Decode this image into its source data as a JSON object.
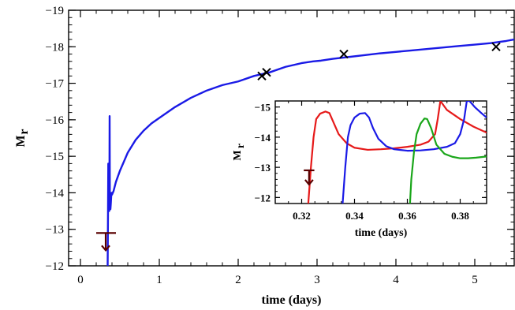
{
  "chart_data": [
    {
      "type": "line",
      "title": "",
      "xlabel": "time (days)",
      "ylabel_main": "M",
      "ylabel_sub": "r",
      "xlim": [
        -0.15,
        5.5
      ],
      "ylim": [
        -12,
        -19
      ],
      "y_axis_inverted": true,
      "xticks": [
        0,
        1,
        2,
        3,
        4,
        5
      ],
      "xtick_labels": [
        "0",
        "1",
        "2",
        "3",
        "4",
        "5"
      ],
      "yticks": [
        -12,
        -13,
        -14,
        -15,
        -16,
        -17,
        -18,
        -19
      ],
      "ytick_labels": [
        "−12",
        "−13",
        "−14",
        "−15",
        "−16",
        "−17",
        "−18",
        "−19"
      ],
      "grid": false,
      "series": [
        {
          "color": "#1a1ae6",
          "x": [
            0.345,
            0.35,
            0.353,
            0.356,
            0.36,
            0.364,
            0.367,
            0.37,
            0.373,
            0.376,
            0.38,
            0.385,
            0.39,
            0.395,
            0.4,
            0.42,
            0.45,
            0.5,
            0.55,
            0.6,
            0.7,
            0.8,
            0.9,
            1.0,
            1.2,
            1.4,
            1.6,
            1.8,
            2.0,
            2.2,
            2.4,
            2.6,
            2.8,
            2.95,
            3.05,
            3.2,
            3.4,
            3.6,
            3.8,
            4.0,
            4.2,
            4.4,
            4.6,
            4.8,
            5.0,
            5.2,
            5.4,
            5.5
          ],
          "y": [
            -12.0,
            -13.6,
            -14.8,
            -13.8,
            -13.55,
            -13.5,
            -13.8,
            -16.1,
            -13.8,
            -13.55,
            -13.55,
            -13.7,
            -13.9,
            -14.0,
            -13.95,
            -14.05,
            -14.3,
            -14.6,
            -14.85,
            -15.1,
            -15.45,
            -15.7,
            -15.9,
            -16.05,
            -16.35,
            -16.6,
            -16.8,
            -16.95,
            -17.05,
            -17.2,
            -17.3,
            -17.45,
            -17.55,
            -17.6,
            -17.62,
            -17.67,
            -17.72,
            -17.77,
            -17.82,
            -17.86,
            -17.9,
            -17.94,
            -17.98,
            -18.02,
            -18.06,
            -18.1,
            -18.16,
            -18.2
          ]
        }
      ],
      "markers": {
        "symbol": "×",
        "color": "#000000",
        "points": [
          {
            "x": 2.3,
            "y": -17.2
          },
          {
            "x": 2.36,
            "y": -17.3
          },
          {
            "x": 3.34,
            "y": -17.8
          },
          {
            "x": 5.27,
            "y": -18.0
          }
        ]
      },
      "upper_limit": {
        "x": 0.32,
        "x_range": [
          0.2,
          0.45
        ],
        "y": -12.9,
        "color": "#5a0000"
      }
    },
    {
      "type": "line",
      "title": "",
      "xlabel": "time (days)",
      "ylabel_main": "M",
      "ylabel_sub": "r",
      "xlim": [
        0.31,
        0.39
      ],
      "ylim": [
        -11.8,
        -15.2
      ],
      "y_axis_inverted": true,
      "xticks": [
        0.32,
        0.34,
        0.36,
        0.38
      ],
      "xtick_labels": [
        "0.32",
        "0.34",
        "0.36",
        "0.38"
      ],
      "yticks": [
        -12,
        -13,
        -14,
        -15
      ],
      "ytick_labels": [
        "−12",
        "−13",
        "−14",
        "−15"
      ],
      "grid": false,
      "series": [
        {
          "color": "#e61a1a",
          "x": [
            0.3225,
            0.3235,
            0.3245,
            0.3255,
            0.327,
            0.329,
            0.3305,
            0.332,
            0.334,
            0.337,
            0.34,
            0.345,
            0.35,
            0.355,
            0.36,
            0.365,
            0.368,
            0.3705,
            0.3715,
            0.3725,
            0.375,
            0.38,
            0.385,
            0.39
          ],
          "y": [
            -11.8,
            -13.0,
            -14.0,
            -14.6,
            -14.78,
            -14.85,
            -14.8,
            -14.5,
            -14.1,
            -13.8,
            -13.65,
            -13.58,
            -13.6,
            -13.63,
            -13.68,
            -13.75,
            -13.85,
            -14.1,
            -14.6,
            -15.2,
            -14.9,
            -14.6,
            -14.35,
            -14.15
          ]
        },
        {
          "color": "#1a1ae6",
          "x": [
            0.3355,
            0.3365,
            0.3375,
            0.3385,
            0.34,
            0.342,
            0.344,
            0.3455,
            0.347,
            0.349,
            0.352,
            0.355,
            0.36,
            0.365,
            0.37,
            0.375,
            0.378,
            0.38,
            0.3815,
            0.3825,
            0.3835,
            0.3855,
            0.388,
            0.39
          ],
          "y": [
            -11.8,
            -13.0,
            -14.0,
            -14.4,
            -14.65,
            -14.78,
            -14.8,
            -14.65,
            -14.3,
            -13.95,
            -13.7,
            -13.6,
            -13.55,
            -13.56,
            -13.6,
            -13.68,
            -13.8,
            -14.1,
            -14.6,
            -15.2,
            -15.2,
            -15.0,
            -14.8,
            -14.65
          ]
        },
        {
          "color": "#1aa61a",
          "x": [
            0.361,
            0.3615,
            0.3625,
            0.3635,
            0.365,
            0.3665,
            0.3675,
            0.369,
            0.371,
            0.374,
            0.377,
            0.38,
            0.383,
            0.386,
            0.39
          ],
          "y": [
            -11.8,
            -12.6,
            -13.5,
            -14.1,
            -14.45,
            -14.62,
            -14.6,
            -14.3,
            -13.75,
            -13.45,
            -13.35,
            -13.3,
            -13.3,
            -13.32,
            -13.36
          ]
        }
      ],
      "upper_limit": {
        "x": 0.3228,
        "x_range": [
          0.3208,
          0.3248
        ],
        "y": -12.9,
        "color": "#5a0000"
      }
    }
  ]
}
